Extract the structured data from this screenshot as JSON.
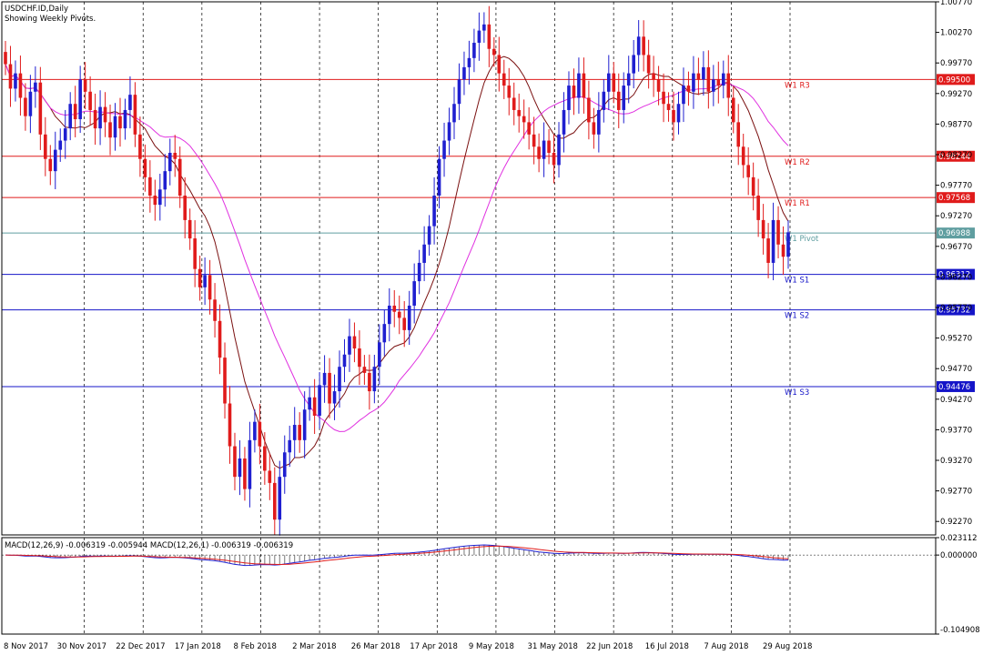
{
  "title": "USDCHF.ID,Daily",
  "subtitle": "Showing Weekly Pivots.",
  "macd_label": "MACD(12,26,9) -0.006319 -0.005944 MACD(12,26,1) -0.006319 -0.006319",
  "colors": {
    "bull": "#1f1fd0",
    "bear": "#e01b1b",
    "ma_fast": "#7a1010",
    "ma_slow": "#e030e0",
    "resistance": "#e01b1b",
    "support": "#1515c8",
    "pivot": "#5f9ea0"
  },
  "chart_data": {
    "type": "candlestick",
    "price_axis": {
      "min": 0.9205,
      "max": 1.0077,
      "ticks": [
        "1.00770",
        "1.00270",
        "0.99770",
        "0.99270",
        "0.98770",
        "0.98270",
        "0.97770",
        "0.97270",
        "0.96770",
        "0.96270",
        "0.95770",
        "0.95270",
        "0.94770",
        "0.94270",
        "0.93770",
        "0.93270",
        "0.92770",
        "0.92270"
      ]
    },
    "time_axis": {
      "ticks": [
        "8 Nov 2017",
        "30 Nov 2017",
        "22 Dec 2017",
        "17 Jan 2018",
        "8 Feb 2018",
        "2 Mar 2018",
        "26 Mar 2018",
        "17 Apr 2018",
        "9 May 2018",
        "31 May 2018",
        "22 Jun 2018",
        "16 Jul 2018",
        "7 Aug 2018",
        "29 Aug 2018"
      ]
    },
    "pivots": [
      {
        "name": "W1 R3",
        "value": 0.995,
        "tag": "0.99500",
        "kind": "resistance"
      },
      {
        "name": "W1 R2",
        "value": 0.98244,
        "tag": "0.98244",
        "kind": "resistance"
      },
      {
        "name": "W1 R1",
        "value": 0.97568,
        "tag": "0.97568",
        "kind": "resistance"
      },
      {
        "name": "W1 Pivot",
        "value": 0.96988,
        "tag": "0.96988",
        "kind": "pivot"
      },
      {
        "name": "W1 S1",
        "value": 0.96312,
        "tag": "0.96312",
        "kind": "support"
      },
      {
        "name": "W1 S2",
        "value": 0.95732,
        "tag": "0.95732",
        "kind": "support"
      },
      {
        "name": "W1 S3",
        "value": 0.94476,
        "tag": "0.94476",
        "kind": "support"
      }
    ],
    "closes": [
      0.9975,
      0.9935,
      0.996,
      0.992,
      0.989,
      0.993,
      0.9945,
      0.986,
      0.982,
      0.98,
      0.9835,
      0.985,
      0.987,
      0.991,
      0.9885,
      0.995,
      0.993,
      0.99,
      0.987,
      0.9905,
      0.988,
      0.9855,
      0.989,
      0.987,
      0.99,
      0.9925,
      0.986,
      0.982,
      0.979,
      0.976,
      0.9745,
      0.977,
      0.98,
      0.983,
      0.982,
      0.976,
      0.972,
      0.969,
      0.964,
      0.961,
      0.963,
      0.959,
      0.9555,
      0.9495,
      0.942,
      0.935,
      0.93,
      0.933,
      0.928,
      0.936,
      0.939,
      0.935,
      0.931,
      0.929,
      0.923,
      0.93,
      0.934,
      0.936,
      0.9385,
      0.936,
      0.941,
      0.943,
      0.94,
      0.945,
      0.947,
      0.942,
      0.944,
      0.948,
      0.95,
      0.953,
      0.951,
      0.948,
      0.947,
      0.944,
      0.948,
      0.952,
      0.955,
      0.958,
      0.957,
      0.956,
      0.954,
      0.958,
      0.962,
      0.965,
      0.968,
      0.971,
      0.976,
      0.982,
      0.985,
      0.988,
      0.991,
      0.995,
      0.997,
      0.9985,
      1.001,
      1.003,
      1.004,
      1.0,
      0.999,
      0.996,
      0.994,
      0.992,
      0.99,
      0.989,
      0.988,
      0.986,
      0.984,
      0.982,
      0.985,
      0.983,
      0.981,
      0.986,
      0.99,
      0.994,
      0.992,
      0.996,
      0.992,
      0.988,
      0.986,
      0.99,
      0.993,
      0.996,
      0.993,
      0.99,
      0.994,
      0.996,
      0.999,
      1.002,
      0.999,
      0.996,
      0.995,
      0.993,
      0.991,
      0.99,
      0.988,
      0.991,
      0.994,
      0.993,
      0.996,
      0.995,
      0.997,
      0.993,
      0.995,
      0.994,
      0.996,
      0.992,
      0.988,
      0.984,
      0.981,
      0.979,
      0.976,
      0.972,
      0.969,
      0.965,
      0.972,
      0.968,
      0.966,
      0.97
    ]
  }
}
